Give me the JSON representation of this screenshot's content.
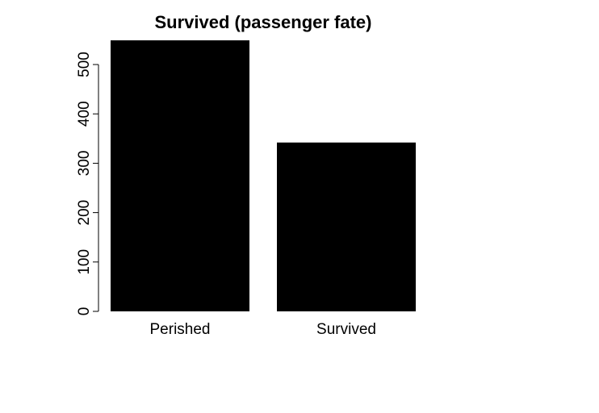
{
  "chart_data": {
    "type": "bar",
    "title": "Survived (passenger fate)",
    "xlabel": "",
    "ylabel": "",
    "categories": [
      "Perished",
      "Survived"
    ],
    "values": [
      549,
      342
    ],
    "ylim": [
      0,
      549
    ],
    "yticks": [
      0,
      100,
      200,
      300,
      400,
      500
    ],
    "ytick_labels": [
      "0",
      "100",
      "200",
      "300",
      "400",
      "500"
    ],
    "bar_color": "#000000",
    "grid": false,
    "legend": "none"
  }
}
